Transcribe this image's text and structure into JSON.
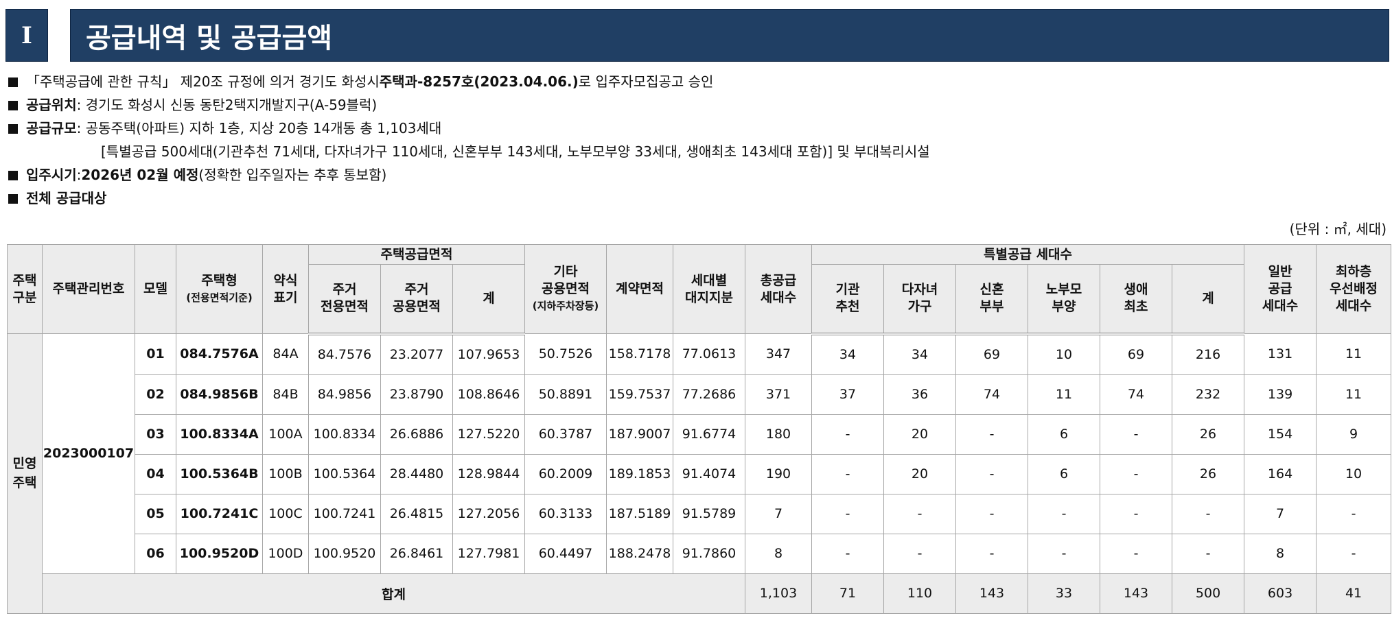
{
  "section": {
    "number": "I",
    "title": "공급내역 및 공급금액"
  },
  "info": {
    "line1_pre": "「주택공급에 관한 규칙」 제20조 규정에 의거 경기도 화성시 ",
    "line1_bold": "주택과-8257호(2023.04.06.)",
    "line1_post": "로 입주자모집공고 승인",
    "location_label": "공급위치",
    "location_value": " : 경기도 화성시 신동 동탄2택지개발지구(A-59블럭)",
    "scale_label": "공급규모",
    "scale_value": " : 공동주택(아파트) 지하 1층, 지상 20층 14개동 총 1,103세대",
    "scale_detail": "[특별공급 500세대(기관추천 71세대, 다자녀가구 110세대, 신혼부부 143세대, 노부모부양 33세대, 생애최초 143세대 포함)] 및 부대복리시설",
    "movein_label": "입주시기",
    "movein_sep": " : ",
    "movein_bold": "2026년 02월 예정",
    "movein_post": "(정확한 입주일자는 추후 통보함)",
    "target_label": "전체 공급대상"
  },
  "unit_note": "(단위 : ㎡, 세대)",
  "table": {
    "headers": {
      "type": "주택\n구분",
      "mgmt_no": "주택관리번호",
      "model": "모델",
      "housing_type": "주택형",
      "housing_type_sub": "(전용면적기준)",
      "abbr": "약식\n표기",
      "area_group": "주택공급면적",
      "exclusive": "주거\n전용면적",
      "common": "주거\n공용면적",
      "sum": "계",
      "other_common": "기타\n공용면적",
      "other_common_sub": "(지하주차장등)",
      "contract": "계약면적",
      "land": "세대별\n대지지분",
      "total_units": "총공급\n세대수",
      "special_group": "특별공급 세대수",
      "inst": "기관\n추천",
      "multi": "다자녀\n가구",
      "newlywed": "신혼\n부부",
      "elderly": "노부모\n부양",
      "first": "생애\n최초",
      "special_sum": "계",
      "general": "일반\n공급\n세대수",
      "lowest": "최하층\n우선배정\n세대수"
    },
    "house_type": "민영\n주택",
    "mgmt_no": "2023000107",
    "rows": [
      {
        "model": "01",
        "type": "084.7576A",
        "abbr": "84A",
        "excl": "84.7576",
        "common": "23.2077",
        "sum": "107.9653",
        "other": "50.7526",
        "contract": "158.7178",
        "land": "77.0613",
        "total": "347",
        "inst": "34",
        "multi": "34",
        "newlywed": "69",
        "elderly": "10",
        "first": "69",
        "sp_sum": "216",
        "general": "131",
        "lowest": "11"
      },
      {
        "model": "02",
        "type": "084.9856B",
        "abbr": "84B",
        "excl": "84.9856",
        "common": "23.8790",
        "sum": "108.8646",
        "other": "50.8891",
        "contract": "159.7537",
        "land": "77.2686",
        "total": "371",
        "inst": "37",
        "multi": "36",
        "newlywed": "74",
        "elderly": "11",
        "first": "74",
        "sp_sum": "232",
        "general": "139",
        "lowest": "11"
      },
      {
        "model": "03",
        "type": "100.8334A",
        "abbr": "100A",
        "excl": "100.8334",
        "common": "26.6886",
        "sum": "127.5220",
        "other": "60.3787",
        "contract": "187.9007",
        "land": "91.6774",
        "total": "180",
        "inst": "-",
        "multi": "20",
        "newlywed": "-",
        "elderly": "6",
        "first": "-",
        "sp_sum": "26",
        "general": "154",
        "lowest": "9"
      },
      {
        "model": "04",
        "type": "100.5364B",
        "abbr": "100B",
        "excl": "100.5364",
        "common": "28.4480",
        "sum": "128.9844",
        "other": "60.2009",
        "contract": "189.1853",
        "land": "91.4074",
        "total": "190",
        "inst": "-",
        "multi": "20",
        "newlywed": "-",
        "elderly": "6",
        "first": "-",
        "sp_sum": "26",
        "general": "164",
        "lowest": "10"
      },
      {
        "model": "05",
        "type": "100.7241C",
        "abbr": "100C",
        "excl": "100.7241",
        "common": "26.4815",
        "sum": "127.2056",
        "other": "60.3133",
        "contract": "187.5189",
        "land": "91.5789",
        "total": "7",
        "inst": "-",
        "multi": "-",
        "newlywed": "-",
        "elderly": "-",
        "first": "-",
        "sp_sum": "-",
        "general": "7",
        "lowest": "-"
      },
      {
        "model": "06",
        "type": "100.9520D",
        "abbr": "100D",
        "excl": "100.9520",
        "common": "26.8461",
        "sum": "127.7981",
        "other": "60.4497",
        "contract": "188.2478",
        "land": "91.7860",
        "total": "8",
        "inst": "-",
        "multi": "-",
        "newlywed": "-",
        "elderly": "-",
        "first": "-",
        "sp_sum": "-",
        "general": "8",
        "lowest": "-"
      }
    ],
    "totals": {
      "label": "합계",
      "total": "1,103",
      "inst": "71",
      "multi": "110",
      "newlywed": "143",
      "elderly": "33",
      "first": "143",
      "sp_sum": "500",
      "general": "603",
      "lowest": "41"
    }
  }
}
